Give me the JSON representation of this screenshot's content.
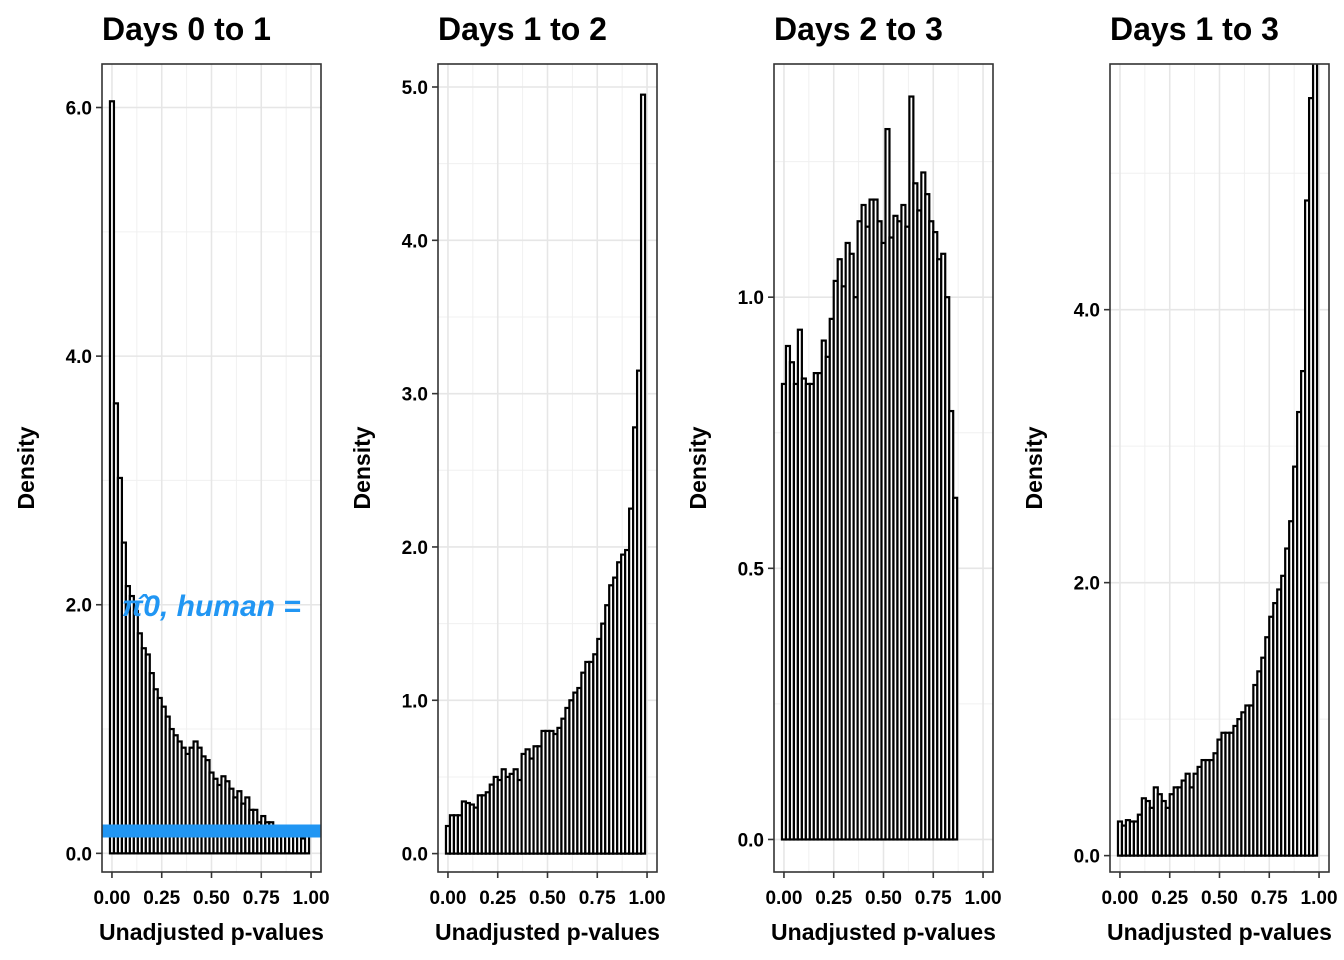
{
  "chart_data": [
    {
      "type": "bar",
      "title": "Days 0 to 1",
      "xlabel": "Unadjusted p-values",
      "ylabel": "Density",
      "xlim": [
        -0.05,
        1.05
      ],
      "ylim": [
        -0.15,
        6.35
      ],
      "xticks": [
        0,
        0.25,
        0.5,
        0.75,
        1
      ],
      "xtick_labels": [
        "0.00",
        "0.25",
        "0.50",
        "0.75",
        "1.00"
      ],
      "yticks": [
        0,
        2,
        4,
        6
      ],
      "ytick_labels": [
        "0.0",
        "2.0",
        "4.0",
        "6.0"
      ],
      "grid": true,
      "bin_width": 0.02,
      "values": [
        6.05,
        3.62,
        3.02,
        2.5,
        2.15,
        2.07,
        1.95,
        1.77,
        1.65,
        1.6,
        1.45,
        1.32,
        1.25,
        1.18,
        1.1,
        1.0,
        0.95,
        0.9,
        0.85,
        0.8,
        0.85,
        0.9,
        0.85,
        0.78,
        0.75,
        0.65,
        0.6,
        0.55,
        0.62,
        0.58,
        0.52,
        0.45,
        0.5,
        0.4,
        0.45,
        0.35,
        0.35,
        0.25,
        0.3,
        0.25,
        0.25,
        0.2,
        0.2,
        0.15,
        0.2,
        0.15,
        0.15,
        0.15,
        0.12,
        0.2
      ],
      "hline": {
        "value": 0.18,
        "color": "#2196F3"
      },
      "annotation": {
        "text": "π̂0, human =",
        "color": "#2196F3"
      }
    },
    {
      "type": "bar",
      "title": "Days 1 to 2",
      "xlabel": "Unadjusted p-values",
      "ylabel": "Density",
      "xlim": [
        -0.05,
        1.05
      ],
      "ylim": [
        -0.12,
        5.15
      ],
      "xticks": [
        0,
        0.25,
        0.5,
        0.75,
        1
      ],
      "xtick_labels": [
        "0.00",
        "0.25",
        "0.50",
        "0.75",
        "1.00"
      ],
      "yticks": [
        0,
        1,
        2,
        3,
        4,
        5
      ],
      "ytick_labels": [
        "0.0",
        "1.0",
        "2.0",
        "3.0",
        "4.0",
        "5.0"
      ],
      "grid": true,
      "bin_width": 0.02,
      "values": [
        0.18,
        0.25,
        0.25,
        0.25,
        0.34,
        0.33,
        0.32,
        0.3,
        0.38,
        0.38,
        0.4,
        0.45,
        0.5,
        0.48,
        0.55,
        0.5,
        0.52,
        0.55,
        0.48,
        0.65,
        0.68,
        0.62,
        0.7,
        0.7,
        0.8,
        0.8,
        0.8,
        0.78,
        0.82,
        0.88,
        0.95,
        1.0,
        1.05,
        1.08,
        1.18,
        1.25,
        1.25,
        1.3,
        1.4,
        1.5,
        1.62,
        1.75,
        1.8,
        1.9,
        1.95,
        1.98,
        2.25,
        2.78,
        3.15,
        4.95
      ]
    },
    {
      "type": "bar",
      "title": "Days 2 to 3",
      "xlabel": "Unadjusted p-values",
      "ylabel": "Density",
      "xlim": [
        -0.05,
        1.05
      ],
      "ylim": [
        -0.06,
        1.43
      ],
      "xticks": [
        0,
        0.25,
        0.5,
        0.75,
        1
      ],
      "xtick_labels": [
        "0.00",
        "0.25",
        "0.50",
        "0.75",
        "1.00"
      ],
      "yticks": [
        0,
        0.5,
        1
      ],
      "ytick_labels": [
        "0.0",
        "0.5",
        "1.0"
      ],
      "grid": true,
      "bin_width": 0.02,
      "values": [
        0.84,
        0.91,
        0.88,
        0.84,
        0.94,
        0.85,
        0.84,
        0.84,
        0.86,
        0.86,
        0.92,
        0.89,
        0.96,
        1.03,
        1.07,
        1.02,
        1.1,
        1.08,
        1.0,
        1.14,
        1.17,
        1.13,
        1.18,
        1.18,
        1.14,
        1.1,
        1.31,
        1.11,
        1.15,
        1.14,
        1.17,
        1.13,
        1.37,
        1.21,
        1.16,
        1.23,
        1.19,
        1.14,
        1.12,
        1.07,
        1.08,
        1.0,
        0.79,
        0.63
      ]
    },
    {
      "type": "bar",
      "title": "Days 1 to 3",
      "xlabel": "Unadjusted p-values",
      "ylabel": "Density",
      "xlim": [
        -0.05,
        1.05
      ],
      "ylim": [
        -0.12,
        5.8
      ],
      "xticks": [
        0,
        0.25,
        0.5,
        0.75,
        1
      ],
      "xtick_labels": [
        "0.00",
        "0.25",
        "0.50",
        "0.75",
        "1.00"
      ],
      "yticks": [
        0,
        2,
        4
      ],
      "ytick_labels": [
        "0.0",
        "2.0",
        "4.0"
      ],
      "grid": true,
      "bin_width": 0.02,
      "values": [
        0.25,
        0.22,
        0.26,
        0.25,
        0.25,
        0.3,
        0.42,
        0.4,
        0.35,
        0.5,
        0.45,
        0.4,
        0.35,
        0.45,
        0.5,
        0.5,
        0.55,
        0.6,
        0.5,
        0.6,
        0.65,
        0.7,
        0.7,
        0.7,
        0.75,
        0.85,
        0.9,
        0.9,
        0.9,
        0.95,
        1.0,
        1.05,
        1.1,
        1.1,
        1.25,
        1.35,
        1.45,
        1.6,
        1.75,
        1.85,
        1.95,
        2.05,
        2.25,
        2.45,
        2.85,
        3.25,
        3.55,
        4.8,
        5.55,
        5.9
      ]
    }
  ]
}
